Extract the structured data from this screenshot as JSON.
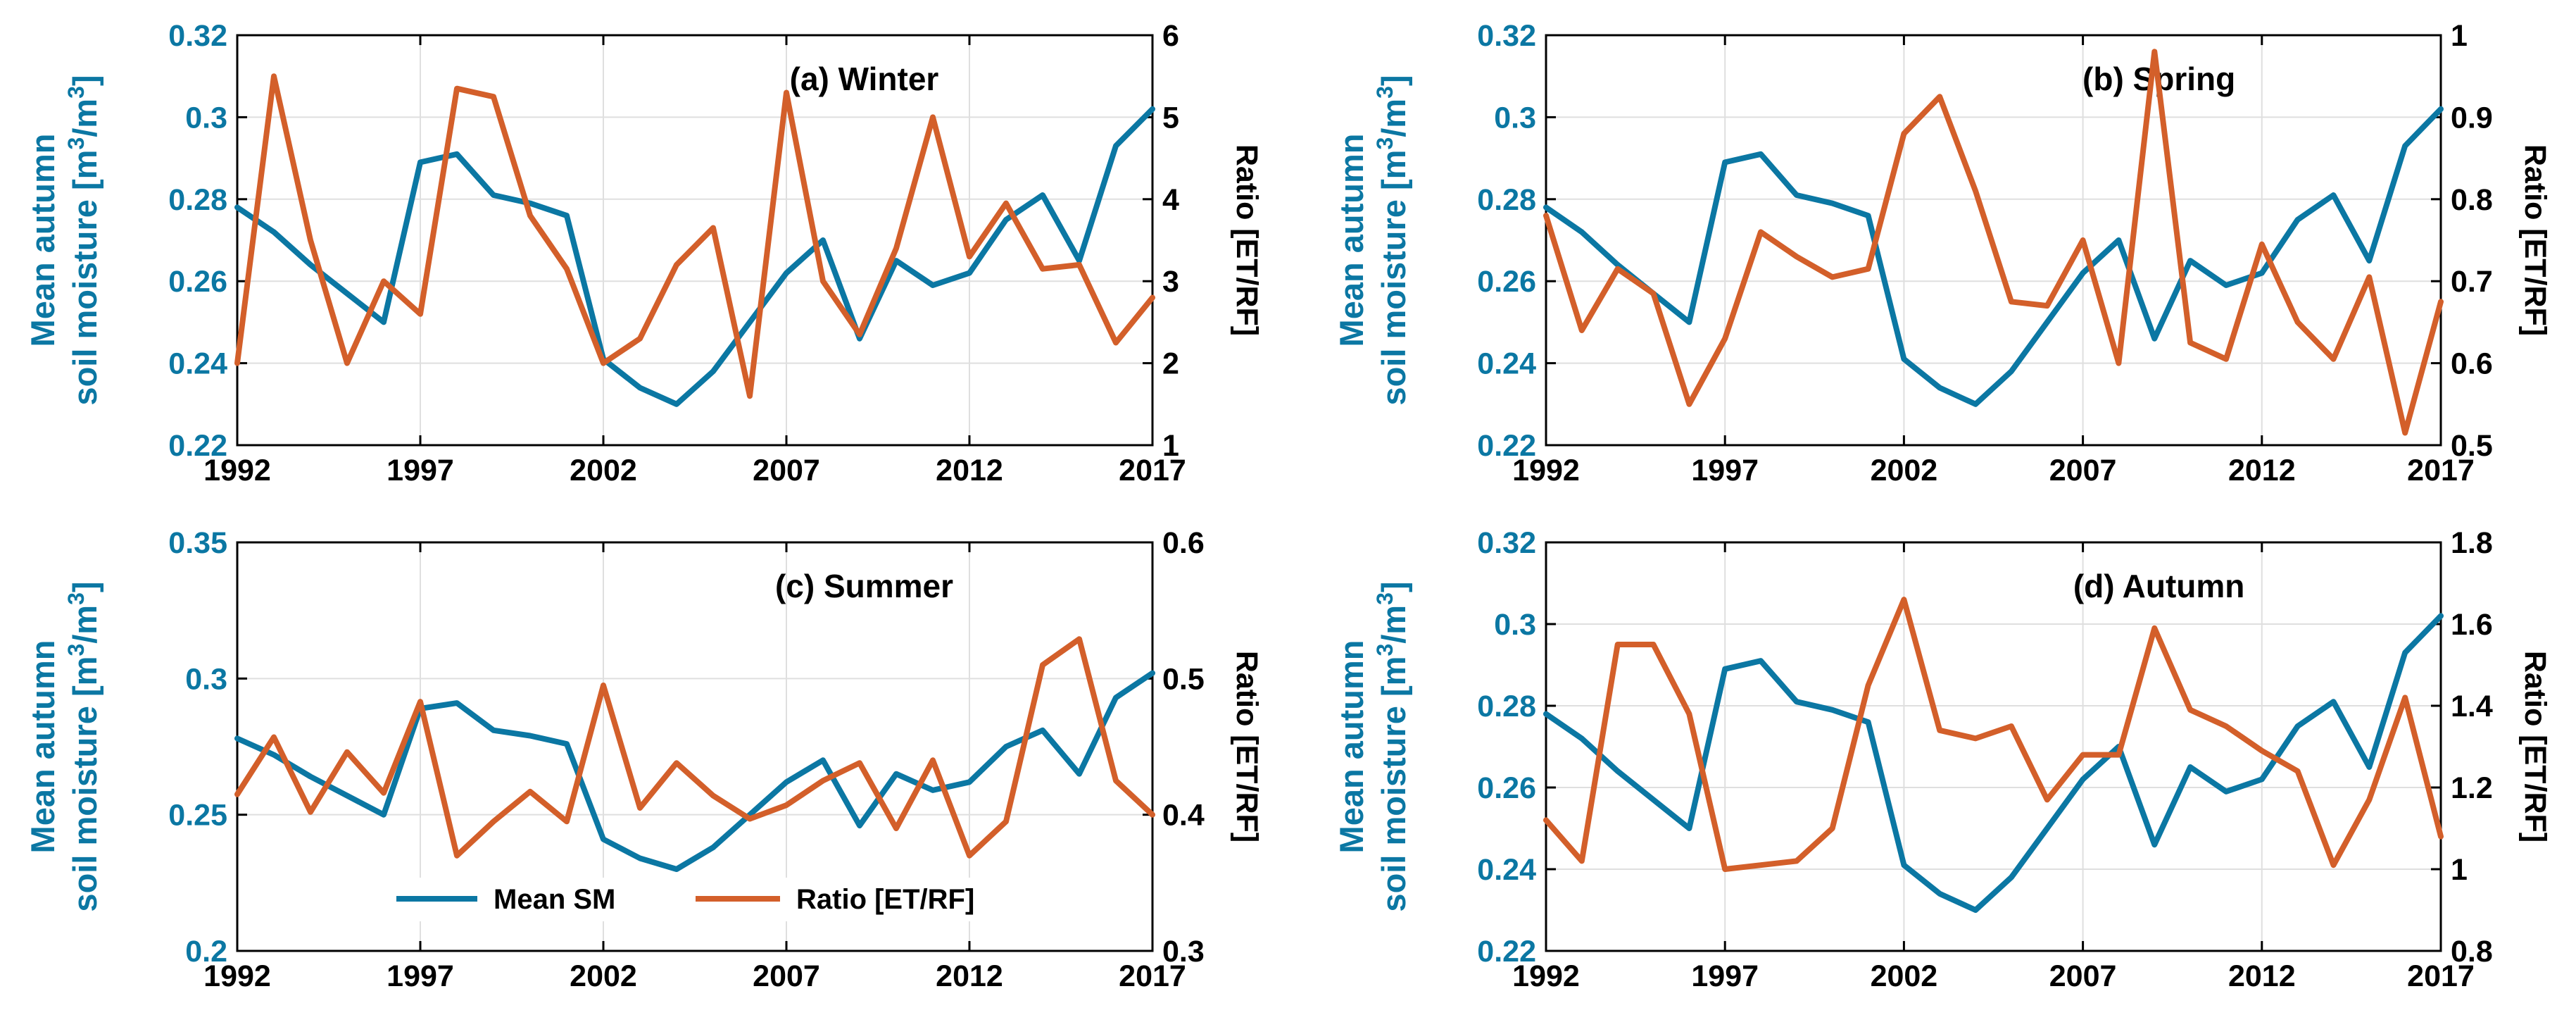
{
  "colors": {
    "sm": "#0b77a3",
    "ratio": "#d35f2a",
    "axis": "#000000",
    "grid": "#dfdfdf"
  },
  "legend": {
    "sm_label": "Mean SM",
    "ratio_label": "Ratio [ET/RF]"
  },
  "chart_data": [
    {
      "type": "line",
      "title": "(a) Winter",
      "xlabel": "",
      "ylabel_line1": "Mean autumn",
      "ylabel_line2": "soil moisture [m",
      "ylabel_sup1": "3",
      "ylabel_mid": "/m",
      "ylabel_sup2": "3",
      "ylabel_end": "]",
      "y2label": "Ratio [ET/RF]",
      "x": [
        1992,
        1993,
        1994,
        1995,
        1996,
        1997,
        1998,
        1999,
        2000,
        2001,
        2002,
        2003,
        2004,
        2005,
        2006,
        2007,
        2008,
        2009,
        2010,
        2011,
        2012,
        2013,
        2014,
        2015,
        2016,
        2017
      ],
      "xticks": [
        1992,
        1997,
        2002,
        2007,
        2012,
        2017
      ],
      "xtick_labels": [
        "1992",
        "1997",
        "2002",
        "2007",
        "2012",
        "2017"
      ],
      "xlim": [
        1992,
        2017
      ],
      "ylim": [
        0.22,
        0.32
      ],
      "yticks": [
        0.22,
        0.24,
        0.26,
        0.28,
        0.3,
        0.32
      ],
      "ytick_labels": [
        "0.22",
        "0.24",
        "0.26",
        "0.28",
        "0.3",
        "0.32"
      ],
      "y2lim": [
        1,
        6
      ],
      "y2ticks": [
        1,
        2,
        3,
        4,
        5,
        6
      ],
      "y2tick_labels": [
        "1",
        "2",
        "3",
        "4",
        "5",
        "6"
      ],
      "series": [
        {
          "name": "Mean SM",
          "axis": "left",
          "values": [
            0.278,
            0.272,
            0.264,
            0.257,
            0.25,
            0.289,
            0.291,
            0.281,
            0.279,
            0.276,
            0.241,
            0.234,
            0.23,
            0.238,
            0.25,
            0.262,
            0.27,
            0.246,
            0.265,
            0.259,
            0.262,
            0.275,
            0.281,
            0.265,
            0.293,
            0.302
          ]
        },
        {
          "name": "Ratio [ET/RF]",
          "axis": "right",
          "values": [
            2.0,
            5.5,
            3.5,
            2.0,
            3.0,
            2.6,
            5.35,
            5.25,
            3.8,
            3.15,
            2.0,
            2.3,
            3.2,
            3.65,
            1.6,
            5.3,
            3.0,
            2.35,
            3.4,
            5.0,
            3.3,
            3.95,
            3.15,
            3.2,
            2.25,
            2.8
          ]
        }
      ]
    },
    {
      "type": "line",
      "title": "(b) Spring",
      "xlabel": "",
      "ylabel_line1": "Mean autumn",
      "ylabel_line2": "soil moisture [m",
      "ylabel_sup1": "3",
      "ylabel_mid": "/m",
      "ylabel_sup2": "3",
      "ylabel_end": "]",
      "y2label": "Ratio [ET/RF]",
      "x": [
        1992,
        1993,
        1994,
        1995,
        1996,
        1997,
        1998,
        1999,
        2000,
        2001,
        2002,
        2003,
        2004,
        2005,
        2006,
        2007,
        2008,
        2009,
        2010,
        2011,
        2012,
        2013,
        2014,
        2015,
        2016,
        2017
      ],
      "xticks": [
        1992,
        1997,
        2002,
        2007,
        2012,
        2017
      ],
      "xtick_labels": [
        "1992",
        "1997",
        "2002",
        "2007",
        "2012",
        "2017"
      ],
      "xlim": [
        1992,
        2017
      ],
      "ylim": [
        0.22,
        0.32
      ],
      "yticks": [
        0.22,
        0.24,
        0.26,
        0.28,
        0.3,
        0.32
      ],
      "ytick_labels": [
        "0.22",
        "0.24",
        "0.26",
        "0.28",
        "0.3",
        "0.32"
      ],
      "y2lim": [
        0.5,
        1
      ],
      "y2ticks": [
        0.5,
        0.6,
        0.7,
        0.8,
        0.9,
        1
      ],
      "y2tick_labels": [
        "0.5",
        "0.6",
        "0.7",
        "0.8",
        "0.9",
        "1"
      ],
      "series": [
        {
          "name": "Mean SM",
          "axis": "left",
          "values": [
            0.278,
            0.272,
            0.264,
            0.257,
            0.25,
            0.289,
            0.291,
            0.281,
            0.279,
            0.276,
            0.241,
            0.234,
            0.23,
            0.238,
            0.25,
            0.262,
            0.27,
            0.246,
            0.265,
            0.259,
            0.262,
            0.275,
            0.281,
            0.265,
            0.293,
            0.302
          ]
        },
        {
          "name": "Ratio [ET/RF]",
          "axis": "right",
          "values": [
            0.78,
            0.64,
            0.715,
            0.685,
            0.55,
            0.63,
            0.76,
            0.73,
            0.705,
            0.715,
            0.88,
            0.925,
            0.81,
            0.675,
            0.67,
            0.75,
            0.6,
            0.98,
            0.625,
            0.605,
            0.745,
            0.65,
            0.605,
            0.705,
            0.515,
            0.675
          ]
        }
      ]
    },
    {
      "type": "line",
      "title": "(c) Summer",
      "xlabel": "",
      "ylabel_line1": "Mean autumn",
      "ylabel_line2": "soil moisture [m",
      "ylabel_sup1": "3",
      "ylabel_mid": "/m",
      "ylabel_sup2": "3",
      "ylabel_end": "]",
      "y2label": "Ratio [ET/RF]",
      "x": [
        1992,
        1993,
        1994,
        1995,
        1996,
        1997,
        1998,
        1999,
        2000,
        2001,
        2002,
        2003,
        2004,
        2005,
        2006,
        2007,
        2008,
        2009,
        2010,
        2011,
        2012,
        2013,
        2014,
        2015,
        2016,
        2017
      ],
      "xticks": [
        1992,
        1997,
        2002,
        2007,
        2012,
        2017
      ],
      "xtick_labels": [
        "1992",
        "1997",
        "2002",
        "2007",
        "2012",
        "2017"
      ],
      "xlim": [
        1992,
        2017
      ],
      "ylim": [
        0.2,
        0.35
      ],
      "yticks": [
        0.2,
        0.25,
        0.3,
        0.35
      ],
      "ytick_labels": [
        "0.2",
        "0.25",
        "0.3",
        "0.35"
      ],
      "y2lim": [
        0.3,
        0.6
      ],
      "y2ticks": [
        0.3,
        0.4,
        0.5,
        0.6
      ],
      "y2tick_labels": [
        "0.3",
        "0.4",
        "0.5",
        "0.6"
      ],
      "series": [
        {
          "name": "Mean SM",
          "axis": "left",
          "values": [
            0.278,
            0.272,
            0.264,
            0.257,
            0.25,
            0.289,
            0.291,
            0.281,
            0.279,
            0.276,
            0.241,
            0.234,
            0.23,
            0.238,
            0.25,
            0.262,
            0.27,
            0.246,
            0.265,
            0.259,
            0.262,
            0.275,
            0.281,
            0.265,
            0.293,
            0.302
          ]
        },
        {
          "name": "Ratio [ET/RF]",
          "axis": "right",
          "values": [
            0.415,
            0.457,
            0.402,
            0.446,
            0.416,
            0.483,
            0.37,
            0.395,
            0.417,
            0.395,
            0.495,
            0.405,
            0.438,
            0.414,
            0.397,
            0.407,
            0.425,
            0.438,
            0.39,
            0.44,
            0.37,
            0.395,
            0.51,
            0.529,
            0.425,
            0.4
          ]
        }
      ]
    },
    {
      "type": "line",
      "title": "(d) Autumn",
      "xlabel": "",
      "ylabel_line1": "Mean autumn",
      "ylabel_line2": "soil moisture [m",
      "ylabel_sup1": "3",
      "ylabel_mid": "/m",
      "ylabel_sup2": "3",
      "ylabel_end": "]",
      "y2label": "Ratio [ET/RF]",
      "x": [
        1992,
        1993,
        1994,
        1995,
        1996,
        1997,
        1998,
        1999,
        2000,
        2001,
        2002,
        2003,
        2004,
        2005,
        2006,
        2007,
        2008,
        2009,
        2010,
        2011,
        2012,
        2013,
        2014,
        2015,
        2016,
        2017
      ],
      "xticks": [
        1992,
        1997,
        2002,
        2007,
        2012,
        2017
      ],
      "xtick_labels": [
        "1992",
        "1997",
        "2002",
        "2007",
        "2012",
        "2017"
      ],
      "xlim": [
        1992,
        2017
      ],
      "ylim": [
        0.22,
        0.32
      ],
      "yticks": [
        0.22,
        0.24,
        0.26,
        0.28,
        0.3,
        0.32
      ],
      "ytick_labels": [
        "0.22",
        "0.24",
        "0.26",
        "0.28",
        "0.3",
        "0.32"
      ],
      "y2lim": [
        0.8,
        1.8
      ],
      "y2ticks": [
        0.8,
        1,
        1.2,
        1.4,
        1.6,
        1.8
      ],
      "y2tick_labels": [
        "0.8",
        "1",
        "1.2",
        "1.4",
        "1.6",
        "1.8"
      ],
      "series": [
        {
          "name": "Mean SM",
          "axis": "left",
          "values": [
            0.278,
            0.272,
            0.264,
            0.257,
            0.25,
            0.289,
            0.291,
            0.281,
            0.279,
            0.276,
            0.241,
            0.234,
            0.23,
            0.238,
            0.25,
            0.262,
            0.27,
            0.246,
            0.265,
            0.259,
            0.262,
            0.275,
            0.281,
            0.265,
            0.293,
            0.302
          ]
        },
        {
          "name": "Ratio [ET/RF]",
          "axis": "right",
          "values": [
            1.12,
            1.02,
            1.55,
            1.55,
            1.38,
            1.0,
            1.01,
            1.02,
            1.1,
            1.45,
            1.66,
            1.34,
            1.32,
            1.35,
            1.17,
            1.28,
            1.28,
            1.59,
            1.39,
            1.35,
            1.29,
            1.24,
            1.01,
            1.17,
            1.42,
            1.08
          ]
        }
      ]
    }
  ]
}
